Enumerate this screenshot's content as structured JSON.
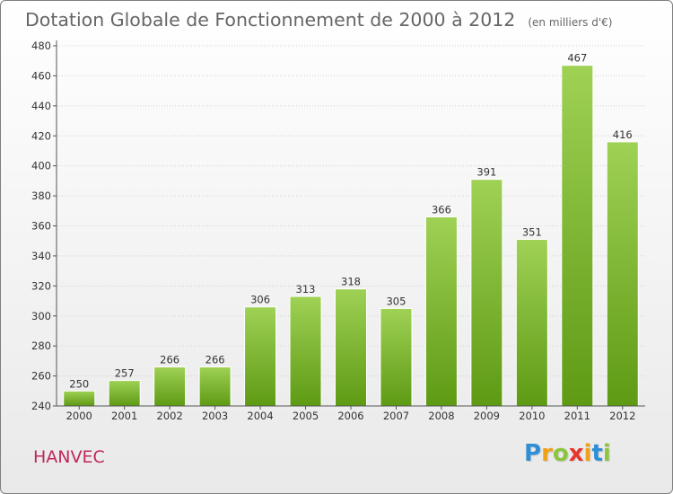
{
  "chart_data": {
    "type": "bar",
    "title": "Dotation Globale de Fonctionnement de 2000 à 2012",
    "subtitle": "(en milliers d'€)",
    "categories": [
      "2000",
      "2001",
      "2002",
      "2003",
      "2004",
      "2005",
      "2006",
      "2007",
      "2008",
      "2009",
      "2010",
      "2011",
      "2012"
    ],
    "values": [
      250,
      257,
      266,
      266,
      306,
      313,
      318,
      305,
      366,
      391,
      351,
      467,
      416
    ],
    "ylim": [
      240,
      480
    ],
    "yticks": [
      240,
      260,
      280,
      300,
      320,
      340,
      360,
      380,
      400,
      420,
      440,
      460,
      480
    ],
    "grid": true,
    "bar_color": "#7dbb2e",
    "xlabel": "",
    "ylabel": ""
  },
  "commune": "HANVEC",
  "logo": {
    "letters": [
      {
        "ch": "P",
        "color": "#2f8fd6"
      },
      {
        "ch": "r",
        "color": "#f0a01a"
      },
      {
        "ch": "o",
        "color": "#8cc63f"
      },
      {
        "ch": "x",
        "color": "#e8352b"
      },
      {
        "ch": "i",
        "color": "#f0a01a"
      },
      {
        "ch": "t",
        "color": "#2f8fd6"
      },
      {
        "ch": "i",
        "color": "#8cc63f"
      }
    ]
  }
}
